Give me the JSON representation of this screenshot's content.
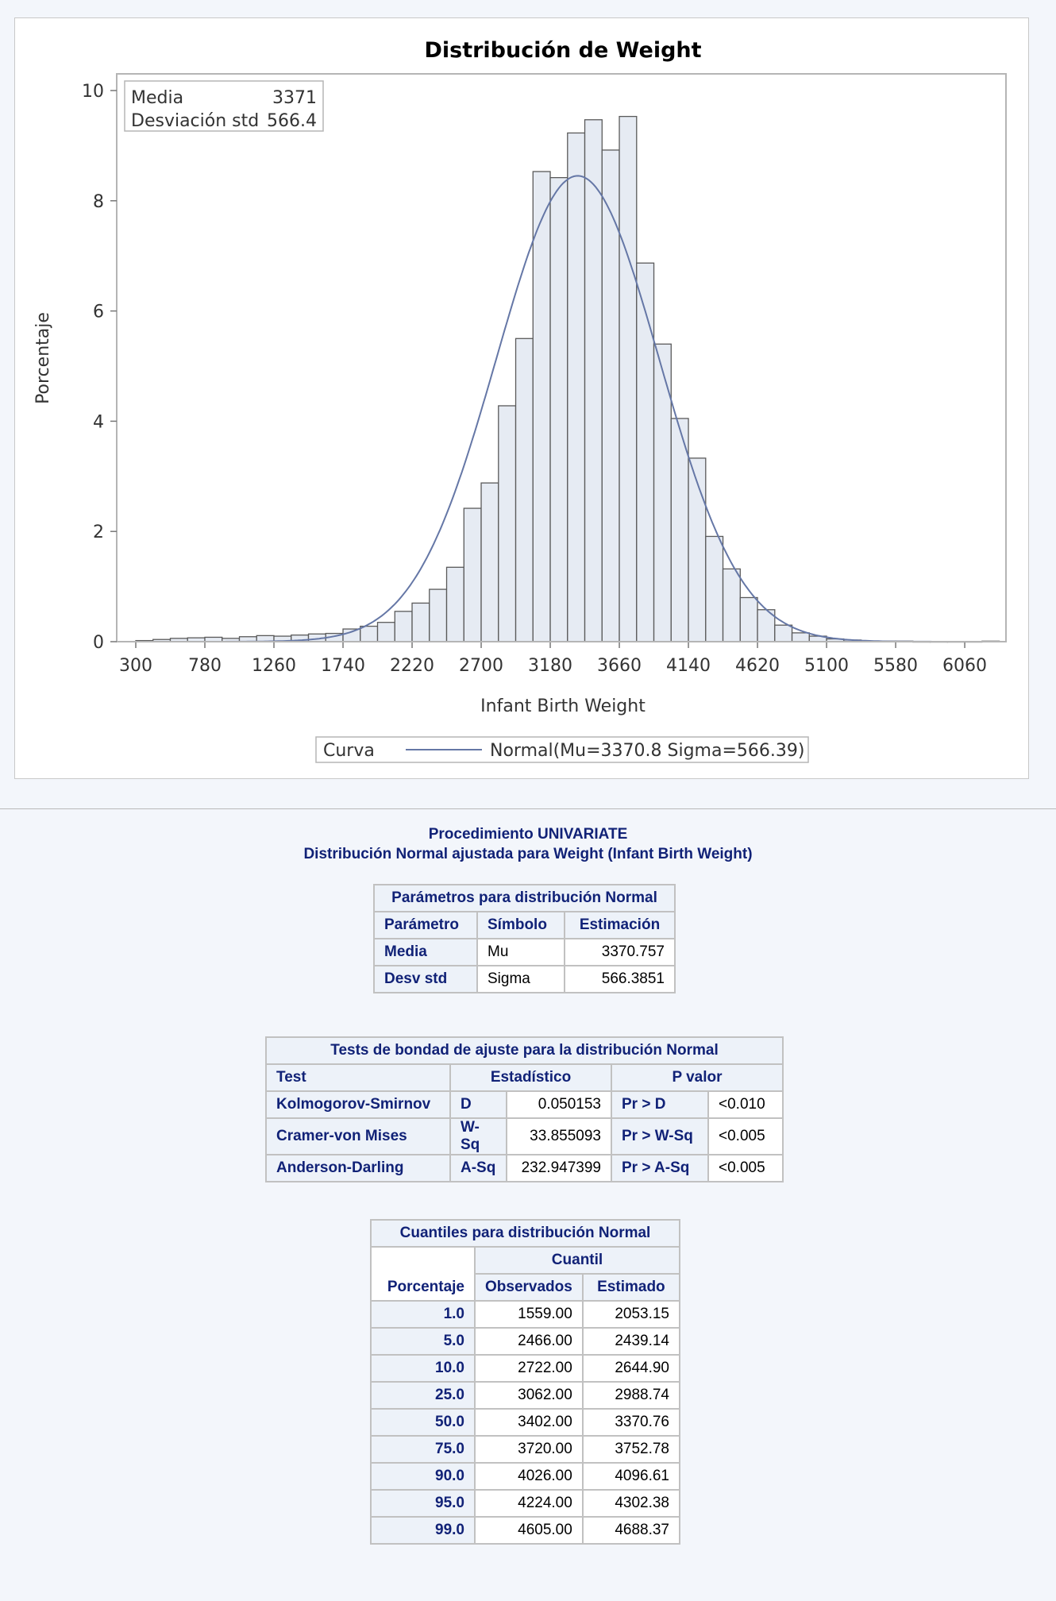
{
  "chart_data": {
    "type": "histogram",
    "title": "Distribución de Weight",
    "xlabel": "Infant Birth Weight",
    "ylabel": "Porcentaje",
    "ylim": [
      0,
      10
    ],
    "xlim": [
      300,
      6330
    ],
    "x_ticks": [
      300,
      780,
      1260,
      1740,
      2220,
      2700,
      3180,
      3660,
      4140,
      4620,
      5100,
      5580,
      6060
    ],
    "y_ticks": [
      0,
      2,
      4,
      6,
      8,
      10
    ],
    "bin_width": 120,
    "bins_start": [
      300,
      420,
      540,
      660,
      780,
      900,
      1020,
      1140,
      1260,
      1380,
      1500,
      1620,
      1740,
      1860,
      1980,
      2100,
      2220,
      2340,
      2460,
      2580,
      2700,
      2820,
      2940,
      3060,
      3180,
      3300,
      3420,
      3540,
      3660,
      3780,
      3900,
      4020,
      4140,
      4260,
      4380,
      4500,
      4620,
      4740,
      4860,
      4980,
      5100,
      5220,
      5340,
      5460,
      5580,
      5700,
      5820,
      5940,
      6060,
      6180
    ],
    "values": [
      0.02,
      0.04,
      0.06,
      0.07,
      0.08,
      0.06,
      0.09,
      0.11,
      0.1,
      0.12,
      0.14,
      0.15,
      0.23,
      0.28,
      0.35,
      0.55,
      0.7,
      0.95,
      1.35,
      2.42,
      2.88,
      4.28,
      5.5,
      8.53,
      8.42,
      9.23,
      9.47,
      8.92,
      9.53,
      6.87,
      5.4,
      4.05,
      3.33,
      1.91,
      1.32,
      0.8,
      0.58,
      0.3,
      0.16,
      0.1,
      0.05,
      0.03,
      0.01,
      0.01,
      0.01,
      0.0,
      0.0,
      0.0,
      0.0,
      0.01
    ],
    "inset": {
      "rows": [
        {
          "label": "Media",
          "value": "3371"
        },
        {
          "label": "Desviación std",
          "value": "566.4"
        }
      ]
    },
    "series": [
      {
        "name": "Normal(Mu=3370.8 Sigma=566.39)",
        "type": "normal-curve",
        "mu": 3370.8,
        "sigma": 566.39
      }
    ],
    "legend": {
      "title": "Curva",
      "position": "bottom"
    },
    "colors": {
      "bar_fill": "#e6ebf3",
      "bar_stroke": "#5a5a5a",
      "curve": "#6577a6"
    }
  },
  "proc": {
    "title": "Procedimiento UNIVARIATE",
    "subtitle": "Distribución Normal ajustada para Weight (Infant Birth Weight)"
  },
  "params_table": {
    "title": "Parámetros para distribución Normal",
    "headers": [
      "Parámetro",
      "Símbolo",
      "Estimación"
    ],
    "rows": [
      [
        "Media",
        "Mu",
        "3370.757"
      ],
      [
        "Desv std",
        "Sigma",
        "566.3851"
      ]
    ]
  },
  "tests_table": {
    "title": "Tests de bondad de ajuste para la distribución Normal",
    "headers": [
      "Test",
      "Estadístico",
      "P valor"
    ],
    "rows": [
      [
        "Kolmogorov-Smirnov",
        "D",
        "0.050153",
        "Pr > D",
        "<0.010"
      ],
      [
        "Cramer-von Mises",
        "W-Sq",
        "33.855093",
        "Pr > W-Sq",
        "<0.005"
      ],
      [
        "Anderson-Darling",
        "A-Sq",
        "232.947399",
        "Pr > A-Sq",
        "<0.005"
      ]
    ]
  },
  "quantiles_table": {
    "title": "Cuantiles para distribución Normal",
    "group_header": "Cuantil",
    "headers": [
      "Porcentaje",
      "Observados",
      "Estimado"
    ],
    "rows": [
      [
        "1.0",
        "1559.00",
        "2053.15"
      ],
      [
        "5.0",
        "2466.00",
        "2439.14"
      ],
      [
        "10.0",
        "2722.00",
        "2644.90"
      ],
      [
        "25.0",
        "3062.00",
        "2988.74"
      ],
      [
        "50.0",
        "3402.00",
        "3370.76"
      ],
      [
        "75.0",
        "3720.00",
        "3752.78"
      ],
      [
        "90.0",
        "4026.00",
        "4096.61"
      ],
      [
        "95.0",
        "4224.00",
        "4302.38"
      ],
      [
        "99.0",
        "4605.00",
        "4688.37"
      ]
    ]
  }
}
